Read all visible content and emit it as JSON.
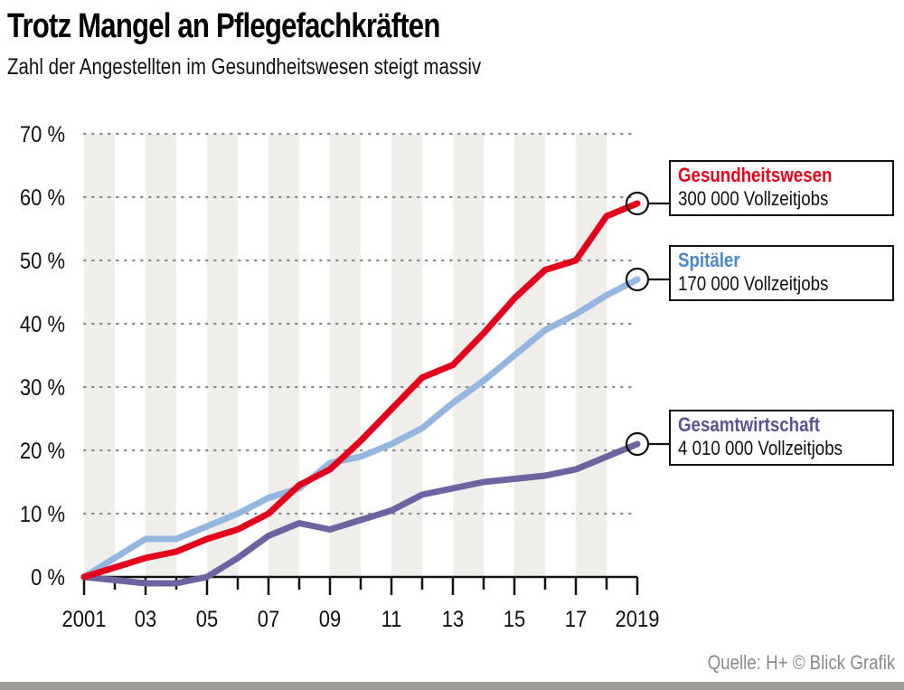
{
  "header": {
    "title": "Trotz Mangel an Pflegefachkräften",
    "subtitle": "Zahl der Angestellten im Gesundheitswesen steigt massiv"
  },
  "footer": {
    "source": "Quelle: H+  © Blick Grafik"
  },
  "chart_data": {
    "type": "line",
    "title": "Trotz Mangel an Pflegefachkräften",
    "subtitle": "Zahl der Angestellten im Gesundheitswesen steigt massiv",
    "xlabel": "",
    "ylabel": "",
    "x": [
      2001,
      2002,
      2003,
      2004,
      2005,
      2006,
      2007,
      2008,
      2009,
      2010,
      2011,
      2012,
      2013,
      2014,
      2015,
      2016,
      2017,
      2018,
      2019
    ],
    "x_tick_values": [
      2001,
      2003,
      2005,
      2007,
      2009,
      2011,
      2013,
      2015,
      2017,
      2019
    ],
    "x_tick_labels": [
      "2001",
      "03",
      "05",
      "07",
      "09",
      "11",
      "13",
      "15",
      "17",
      "2019"
    ],
    "y_tick_values": [
      0,
      10,
      20,
      30,
      40,
      50,
      60,
      70
    ],
    "y_tick_labels": [
      "0 %",
      "10 %",
      "20 %",
      "30 %",
      "40 %",
      "50 %",
      "60 %",
      "70 %"
    ],
    "ylim": [
      0,
      70
    ],
    "xlim": [
      2001,
      2019
    ],
    "grid": "horizontal dotted",
    "series": [
      {
        "name": "Gesundheitswesen",
        "note": "300 000 Vollzeitjobs",
        "color": "#e2001a",
        "values": [
          0,
          1.5,
          3,
          4,
          6,
          7.5,
          10,
          14.5,
          17,
          21.5,
          26.5,
          31.5,
          33.5,
          38.5,
          44,
          48.5,
          50,
          57,
          59
        ]
      },
      {
        "name": "Spitäler",
        "note": "170 000 Vollzeitjobs",
        "color": "#94b6df",
        "label_color": "#4a86c8",
        "values": [
          0,
          3,
          6,
          6,
          8,
          10,
          12.5,
          14,
          18,
          19,
          21,
          23.5,
          27.5,
          31,
          35,
          39,
          41.5,
          44.5,
          47
        ]
      },
      {
        "name": "Gesamtwirtschaft",
        "note": "4 010 000 Vollzeitjobs",
        "color": "#6c64a0",
        "label_color": "#5b5390",
        "values": [
          0,
          -0.5,
          -1,
          -1,
          0,
          3,
          6.5,
          8.5,
          7.5,
          9,
          10.5,
          13,
          14,
          15,
          15.5,
          16,
          17,
          19,
          21
        ]
      }
    ],
    "legend": "right, boxed callouts at line endpoints"
  }
}
